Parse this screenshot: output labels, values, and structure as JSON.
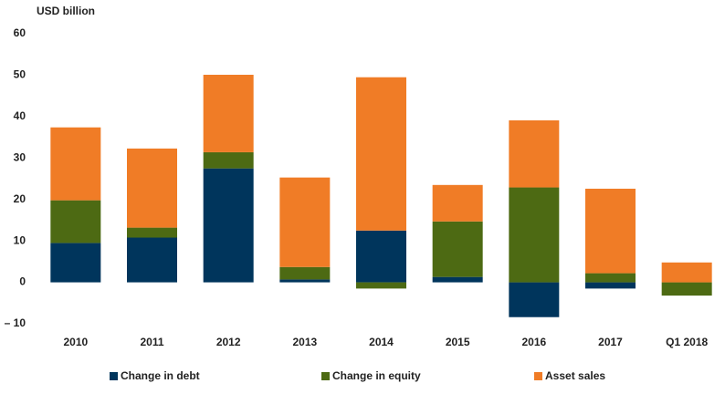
{
  "chart_data": {
    "type": "stacked_bar",
    "y_axis_label": "USD billion",
    "categories": [
      "2010",
      "2011",
      "2012",
      "2013",
      "2014",
      "2015",
      "2016",
      "2017",
      "Q1 2018"
    ],
    "series": [
      {
        "name": "Change in debt",
        "color": "#00355c",
        "values": [
          9.5,
          10.8,
          27.5,
          0.7,
          12.5,
          1.3,
          -8.4,
          -1.5,
          0
        ]
      },
      {
        "name": "Change in equity",
        "color": "#4d6a13",
        "values": [
          10.3,
          2.4,
          3.9,
          3.0,
          -1.5,
          13.4,
          22.9,
          2.2,
          -3.2
        ]
      },
      {
        "name": "Asset sales",
        "color": "#f07c26",
        "values": [
          17.6,
          19.1,
          18.7,
          21.6,
          37.0,
          8.8,
          16.2,
          20.4,
          4.8
        ]
      }
    ],
    "ylim": [
      -10,
      60
    ],
    "yticks": [
      {
        "value": -10,
        "label": "– 10"
      },
      0,
      10,
      20,
      30,
      40,
      50,
      60
    ],
    "legend": "bottom"
  }
}
